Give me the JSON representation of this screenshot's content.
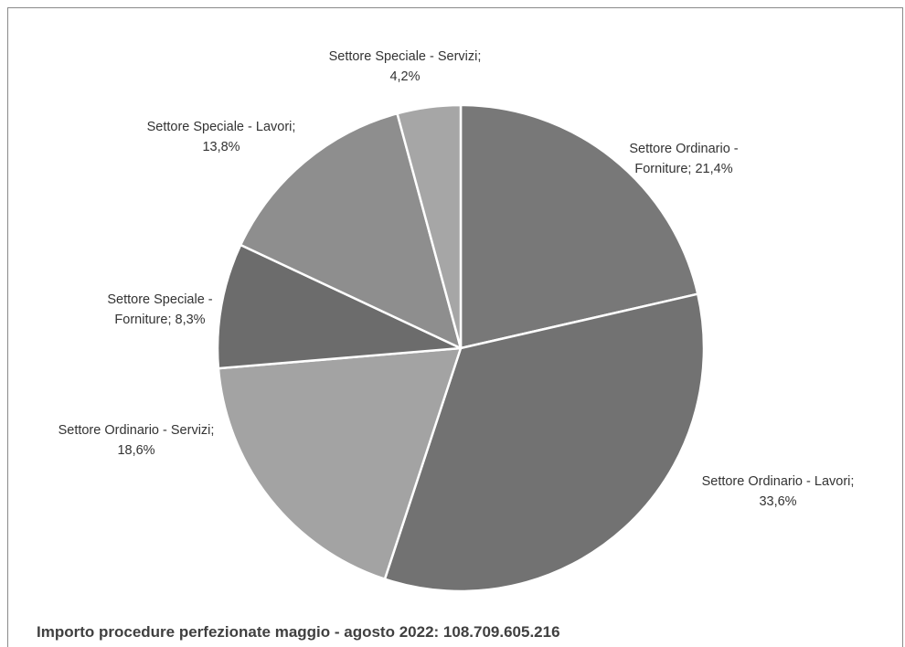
{
  "chart_data": {
    "type": "pie",
    "slices": [
      {
        "label_lines": [
          "Settore Ordinario -",
          "Forniture; 21,4%"
        ],
        "value": 21.4,
        "color": "#787878"
      },
      {
        "label_lines": [
          "Settore Ordinario - Lavori;",
          "33,6%"
        ],
        "value": 33.6,
        "color": "#727272"
      },
      {
        "label_lines": [
          "Settore Ordinario - Servizi;",
          "18,6%"
        ],
        "value": 18.6,
        "color": "#a3a3a3"
      },
      {
        "label_lines": [
          "Settore Speciale -",
          "Forniture; 8,3%"
        ],
        "value": 8.3,
        "color": "#6c6c6c"
      },
      {
        "label_lines": [
          "Settore Speciale - Lavori;",
          "13,8%"
        ],
        "value": 13.8,
        "color": "#8e8e8e"
      },
      {
        "label_lines": [
          "Settore Speciale - Servizi;",
          "4,2%"
        ],
        "value": 4.2,
        "color": "#a6a6a6"
      }
    ]
  },
  "footer": {
    "text": "Importo procedure perfezionate maggio  - agosto 2022:  108.709.605.216"
  }
}
